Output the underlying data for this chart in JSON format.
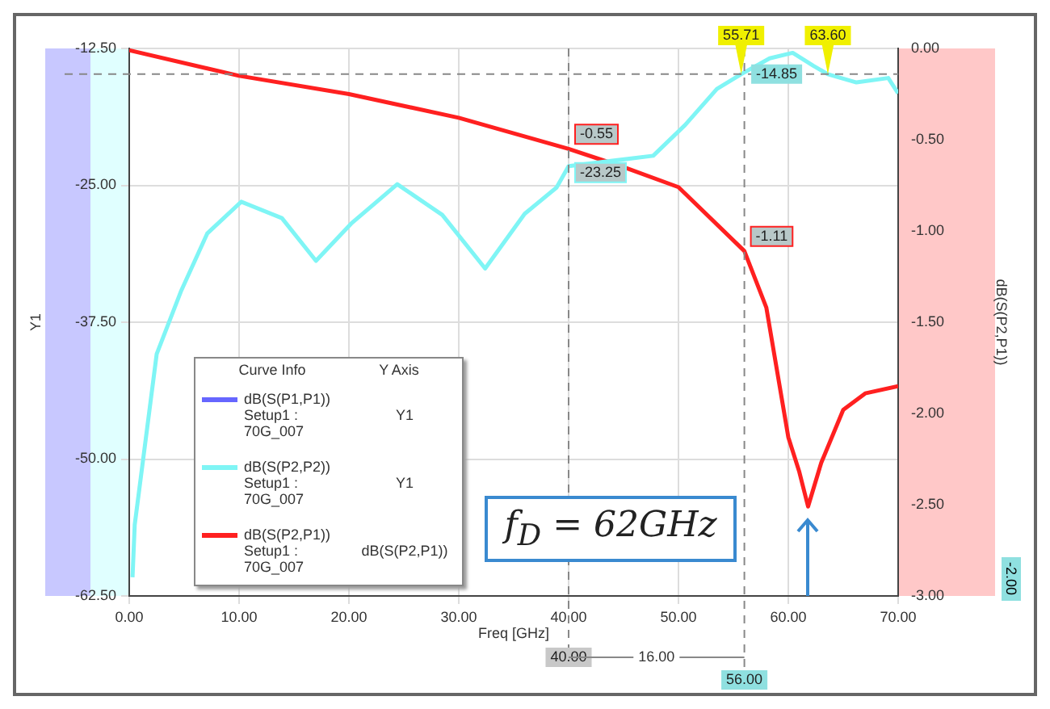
{
  "chart_data": {
    "type": "line",
    "xlabel": "Freq [GHz]",
    "ylabel": "Y1",
    "y2label": "dB(S(P2,P1))",
    "legend_title": "Curve Info",
    "xlim": [
      0,
      70
    ],
    "xticks": [
      {
        "value": 0,
        "label": "0.00"
      },
      {
        "value": 10,
        "label": "10.00"
      },
      {
        "value": 20,
        "label": "20.00"
      },
      {
        "value": 30,
        "label": "30.00"
      },
      {
        "value": 40,
        "label": "40.00"
      },
      {
        "value": 50,
        "label": "50.00"
      },
      {
        "value": 60,
        "label": "60.00"
      },
      {
        "value": 70,
        "label": "70.00"
      }
    ],
    "ylim": [
      -62.5,
      -12.5
    ],
    "yticks": [
      {
        "value": -62.5,
        "label": "-62.50"
      },
      {
        "value": -50,
        "label": "-50.00"
      },
      {
        "value": -37.5,
        "label": "-37.50"
      },
      {
        "value": -25,
        "label": "-25.00"
      },
      {
        "value": -12.5,
        "label": "-12.50"
      }
    ],
    "y2lim": [
      -3,
      0
    ],
    "y2ticks": [
      {
        "value": -3,
        "label": "-3.00"
      },
      {
        "value": -2.5,
        "label": "-2.50"
      },
      {
        "value": -2,
        "label": "-2.00"
      },
      {
        "value": -1.5,
        "label": "-1.50"
      },
      {
        "value": -1,
        "label": "-1.00"
      },
      {
        "value": -0.5,
        "label": "-0.50"
      },
      {
        "value": 0,
        "label": "0.00"
      }
    ],
    "grid": true,
    "legend": "bottom left",
    "series": [
      {
        "name": "dB(S(P1,P1)) Setup1 : 70G_007",
        "color": "#6666ff"
      },
      {
        "name": "dB(S(P2,P2)) Setup1 : 70G_007",
        "color": "#7ff5f5",
        "x": [
          0.3,
          0.5,
          2.5,
          4.7,
          7.1,
          10.2,
          13.9,
          17,
          20.2,
          24.4,
          28.5,
          32.4,
          36,
          38.9,
          40,
          47.7,
          50.6,
          53.5,
          55.71,
          58.3,
          60.4,
          62.3,
          63.6,
          66.2,
          69.1,
          70
        ],
        "values": [
          -60.8,
          -56,
          -40.4,
          -34.7,
          -29.4,
          -26.5,
          -28,
          -31.9,
          -28.5,
          -24.9,
          -27.7,
          -32.6,
          -27.6,
          -25.2,
          -23.25,
          -22.3,
          -19.5,
          -16.2,
          -14.85,
          -13.4,
          -12.9,
          -14.1,
          -14.85,
          -15.6,
          -15.2,
          -16.6
        ],
        "value_labels": [
          null,
          null,
          null,
          null,
          null,
          null,
          null,
          null,
          null,
          null,
          null,
          null,
          null,
          null,
          "-23.25",
          null,
          null,
          null,
          null,
          null,
          null,
          null,
          null,
          null,
          null,
          null
        ]
      },
      {
        "name": "dB(S(P2,P1)) Setup1 : 70G_007",
        "color": "#ff2020",
        "axis": "y2",
        "x": [
          0,
          10,
          20,
          30,
          40,
          45,
          50,
          56,
          58,
          60,
          61,
          61.8,
          63,
          65,
          67,
          70
        ],
        "values": [
          -0.01,
          -0.15,
          -0.25,
          -0.38,
          -0.55,
          -0.65,
          -0.76,
          -1.11,
          -1.42,
          -2.13,
          -2.32,
          -2.51,
          -2.27,
          -1.98,
          -1.89,
          -1.85
        ],
        "value_labels": [
          null,
          null,
          null,
          null,
          "-0.55",
          null,
          null,
          "-1.11",
          null,
          null,
          null,
          null,
          null,
          null,
          null,
          null
        ]
      }
    ],
    "ref_lines": [
      {
        "axis": "x",
        "value": 40,
        "label": "40.00",
        "color": "#888888",
        "line_style": "dashed"
      },
      {
        "axis": "x",
        "value": 56,
        "label": "56.00",
        "color": "#888888",
        "line_style": "dashed"
      },
      {
        "axis": "y",
        "value": -14.85,
        "label": "-14.85",
        "color": "#888888",
        "line_style": "dashed"
      }
    ],
    "annotations": [
      "Y Axis",
      "Y1",
      "Y1",
      "dB(S(P2,P1))",
      "16.00",
      "f$_{D}$ = 62GHz",
      "-2.00",
      {
        "text": "55.71",
        "x": 55.71,
        "y": -14.85
      },
      {
        "text": "63.60",
        "x": 63.6,
        "y": -14.85
      }
    ]
  }
}
